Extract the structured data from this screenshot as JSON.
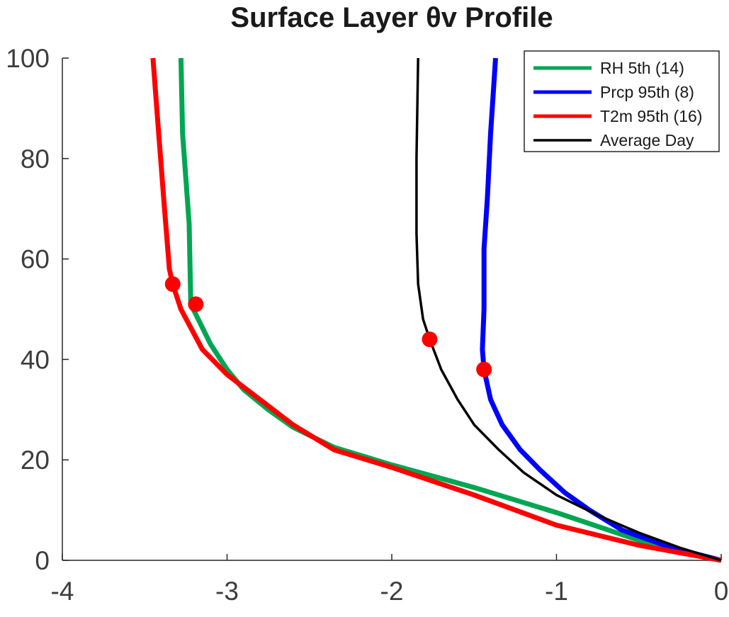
{
  "chart_data": {
    "type": "line",
    "title": "Surface Layer θv Profile",
    "xlabel": "",
    "ylabel": "",
    "xlim": [
      -4,
      0
    ],
    "ylim": [
      0,
      100
    ],
    "xticks": [
      -4,
      -3,
      -2,
      -1,
      0
    ],
    "yticks": [
      0,
      20,
      40,
      60,
      80,
      100
    ],
    "grid": false,
    "legend_position": "top-right",
    "series": [
      {
        "name": "RH 5th (14)",
        "color": "#00a651",
        "width": 7,
        "points": [
          [
            -3.28,
            100
          ],
          [
            -3.27,
            85
          ],
          [
            -3.23,
            67
          ],
          [
            -3.22,
            51
          ],
          [
            -3.19,
            49
          ],
          [
            -3.1,
            43
          ],
          [
            -3.0,
            38
          ],
          [
            -2.9,
            34
          ],
          [
            -2.75,
            30
          ],
          [
            -2.6,
            26.5
          ],
          [
            -2.35,
            22.5
          ],
          [
            -2.0,
            19
          ],
          [
            -1.5,
            14.5
          ],
          [
            -1.0,
            9.5
          ],
          [
            -0.5,
            4
          ],
          [
            0.0,
            0
          ]
        ],
        "markers": [
          [
            -3.19,
            51
          ]
        ]
      },
      {
        "name": "Prcp 95th (8)",
        "color": "#0000ff",
        "width": 7,
        "points": [
          [
            -1.37,
            100
          ],
          [
            -1.4,
            85
          ],
          [
            -1.42,
            72
          ],
          [
            -1.44,
            62
          ],
          [
            -1.44,
            50
          ],
          [
            -1.45,
            42
          ],
          [
            -1.44,
            38
          ],
          [
            -1.4,
            32
          ],
          [
            -1.33,
            27
          ],
          [
            -1.22,
            22
          ],
          [
            -1.1,
            18
          ],
          [
            -0.95,
            13.5
          ],
          [
            -0.8,
            10
          ],
          [
            -0.6,
            6
          ],
          [
            -0.3,
            2.5
          ],
          [
            0.0,
            0
          ]
        ],
        "markers": [
          [
            -1.44,
            38
          ]
        ]
      },
      {
        "name": "T2m 95th (16)",
        "color": "#ff0000",
        "width": 7,
        "points": [
          [
            -3.45,
            100
          ],
          [
            -3.42,
            87
          ],
          [
            -3.38,
            70
          ],
          [
            -3.35,
            58
          ],
          [
            -3.33,
            55
          ],
          [
            -3.28,
            50
          ],
          [
            -3.15,
            42
          ],
          [
            -3.0,
            37
          ],
          [
            -2.8,
            32
          ],
          [
            -2.6,
            27
          ],
          [
            -2.35,
            22
          ],
          [
            -2.0,
            18.5
          ],
          [
            -1.5,
            13
          ],
          [
            -1.0,
            7
          ],
          [
            -0.5,
            3
          ],
          [
            0.0,
            0
          ]
        ],
        "markers": [
          [
            -3.33,
            55
          ]
        ]
      },
      {
        "name": "Average Day",
        "color": "#000000",
        "width": 3.5,
        "points": [
          [
            -1.84,
            100
          ],
          [
            -1.85,
            80
          ],
          [
            -1.85,
            65
          ],
          [
            -1.84,
            55
          ],
          [
            -1.81,
            48
          ],
          [
            -1.77,
            44
          ],
          [
            -1.7,
            38
          ],
          [
            -1.6,
            32
          ],
          [
            -1.5,
            27
          ],
          [
            -1.35,
            22
          ],
          [
            -1.2,
            17.5
          ],
          [
            -1.0,
            13
          ],
          [
            -0.75,
            9
          ],
          [
            -0.5,
            5.5
          ],
          [
            -0.25,
            2.5
          ],
          [
            0.0,
            0
          ]
        ],
        "markers": [
          [
            -1.77,
            44
          ]
        ]
      }
    ],
    "marker_color": "#ff0000"
  }
}
